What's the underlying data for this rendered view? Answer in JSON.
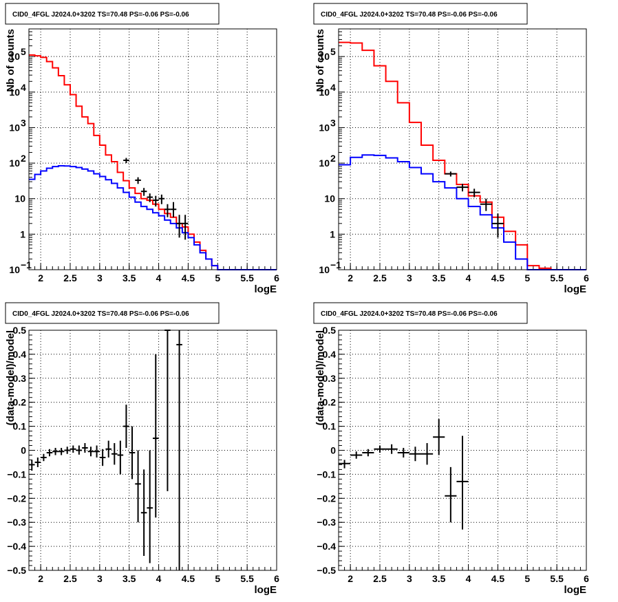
{
  "chart_data": [
    {
      "type": "histogram",
      "title": "CID0_4FGL J2024.0+3202 TS=70.48 PS=-0.06 PS=-0.06",
      "xlabel": "logE",
      "ylabel": "Nb of counts",
      "xlim": [
        1.8,
        6.0
      ],
      "ylim": [
        0.1,
        600000
      ],
      "yscale": "log",
      "grid": true,
      "xticks": [
        "2",
        "2.5",
        "3",
        "3.5",
        "4",
        "4.5",
        "5",
        "5.5",
        "6"
      ],
      "yticks": [
        {
          "v": 0.1,
          "base": "10",
          "exp": "−1"
        },
        {
          "v": 1,
          "base": "1",
          "exp": ""
        },
        {
          "v": 10,
          "base": "10",
          "exp": ""
        },
        {
          "v": 100,
          "base": "10",
          "exp": "2"
        },
        {
          "v": 1000,
          "base": "10",
          "exp": "3"
        },
        {
          "v": 10000,
          "base": "10",
          "exp": "4"
        },
        {
          "v": 100000,
          "base": "10",
          "exp": "5"
        }
      ],
      "series": [
        {
          "color": "#ff0000",
          "bin_width": 0.1,
          "x": [
            1.8,
            1.9,
            2.0,
            2.1,
            2.2,
            2.3,
            2.4,
            2.5,
            2.6,
            2.7,
            2.8,
            2.9,
            3.0,
            3.1,
            3.2,
            3.3,
            3.4,
            3.5,
            3.6,
            3.7,
            3.8,
            3.9,
            4.0,
            4.1,
            4.2,
            4.3,
            4.4,
            4.5,
            4.6,
            4.7,
            4.8,
            4.9,
            5.0,
            5.1,
            5.2,
            5.3,
            5.4,
            5.5,
            5.6,
            5.7,
            5.8,
            5.9
          ],
          "y": [
            110000,
            105000,
            95000,
            72000,
            48000,
            29000,
            16000,
            8500,
            4000,
            2000,
            1300,
            600,
            320,
            170,
            110,
            55,
            32,
            20,
            14,
            10,
            9,
            7,
            5,
            3.8,
            3.0,
            2.0,
            1.6,
            1.0,
            0.6,
            0.35,
            0.2,
            0.13,
            0.1,
            0.1,
            0.1,
            0.1,
            0.1,
            0.1,
            0.1,
            0.1,
            0.1,
            0.1
          ]
        },
        {
          "color": "#0000ff",
          "bin_width": 0.1,
          "x": [
            1.8,
            1.9,
            2.0,
            2.1,
            2.2,
            2.3,
            2.4,
            2.5,
            2.6,
            2.7,
            2.8,
            2.9,
            3.0,
            3.1,
            3.2,
            3.3,
            3.4,
            3.5,
            3.6,
            3.7,
            3.8,
            3.9,
            4.0,
            4.1,
            4.2,
            4.3,
            4.4,
            4.5,
            4.6,
            4.7,
            4.8,
            4.9,
            5.0,
            5.1,
            5.2,
            5.3,
            5.4,
            5.5,
            5.6,
            5.7,
            5.8,
            5.9
          ],
          "y": [
            35,
            48,
            60,
            72,
            80,
            84,
            83,
            80,
            75,
            68,
            60,
            50,
            42,
            34,
            27,
            20,
            15,
            11,
            8,
            6,
            5,
            4,
            3.3,
            2.5,
            2,
            1.5,
            1.1,
            0.8,
            0.5,
            0.3,
            0.2,
            0.13,
            0.1,
            0.1,
            0.1,
            0.1,
            0.1,
            0.1,
            0.1,
            0.1,
            0.1,
            0.1
          ]
        }
      ],
      "points": [
        {
          "x": 3.45,
          "y": 120,
          "ylo": 100,
          "yhi": 140,
          "xerr": 0.05
        },
        {
          "x": 3.65,
          "y": 33,
          "ylo": 26,
          "yhi": 40,
          "xerr": 0.05
        },
        {
          "x": 3.75,
          "y": 16,
          "ylo": 12,
          "yhi": 20,
          "xerr": 0.05
        },
        {
          "x": 3.85,
          "y": 11,
          "ylo": 8,
          "yhi": 14,
          "xerr": 0.05
        },
        {
          "x": 3.95,
          "y": 9,
          "ylo": 6,
          "yhi": 12,
          "xerr": 0.05
        },
        {
          "x": 4.05,
          "y": 10,
          "ylo": 7,
          "yhi": 13,
          "xerr": 0.05
        },
        {
          "x": 4.15,
          "y": 5,
          "ylo": 3,
          "yhi": 7,
          "xerr": 0.05
        },
        {
          "x": 4.25,
          "y": 5,
          "ylo": 3,
          "yhi": 8,
          "xerr": 0.05
        },
        {
          "x": 4.35,
          "y": 2,
          "ylo": 0.8,
          "yhi": 3.5,
          "xerr": 0.05
        },
        {
          "x": 4.45,
          "y": 2,
          "ylo": 0.7,
          "yhi": 3.5,
          "xerr": 0.05
        }
      ]
    },
    {
      "type": "histogram",
      "title": "CID0_4FGL J2024.0+3202 TS=70.48 PS=-0.06 PS=-0.06",
      "xlabel": "logE",
      "ylabel": "Nb of counts",
      "xlim": [
        1.8,
        6.0
      ],
      "ylim": [
        0.1,
        600000
      ],
      "yscale": "log",
      "grid": true,
      "xticks": [
        "2",
        "2.5",
        "3",
        "3.5",
        "4",
        "4.5",
        "5",
        "5.5",
        "6"
      ],
      "yticks": [
        {
          "v": 0.1,
          "base": "10",
          "exp": "−1"
        },
        {
          "v": 1,
          "base": "1",
          "exp": ""
        },
        {
          "v": 10,
          "base": "10",
          "exp": ""
        },
        {
          "v": 100,
          "base": "10",
          "exp": "2"
        },
        {
          "v": 1000,
          "base": "10",
          "exp": "3"
        },
        {
          "v": 10000,
          "base": "10",
          "exp": "4"
        },
        {
          "v": 100000,
          "base": "10",
          "exp": "5"
        }
      ],
      "series": [
        {
          "color": "#ff0000",
          "bin_width": 0.2,
          "x": [
            1.8,
            2.0,
            2.2,
            2.4,
            2.6,
            2.8,
            3.0,
            3.2,
            3.4,
            3.6,
            3.8,
            4.0,
            4.2,
            4.4,
            4.6,
            4.8,
            5.0,
            5.2,
            5.4,
            5.6,
            5.8
          ],
          "y": [
            250000,
            240000,
            150000,
            55000,
            20000,
            5000,
            1400,
            320,
            120,
            50,
            25,
            12,
            8,
            3,
            1.2,
            0.5,
            0.13,
            0.11,
            0.1,
            0.1,
            0.1
          ]
        },
        {
          "color": "#0000ff",
          "bin_width": 0.2,
          "x": [
            1.8,
            2.0,
            2.2,
            2.4,
            2.6,
            2.8,
            3.0,
            3.2,
            3.4,
            3.6,
            3.8,
            4.0,
            4.2,
            4.4,
            4.6,
            4.8,
            5.0,
            5.2,
            5.4,
            5.6,
            5.8
          ],
          "y": [
            90,
            145,
            170,
            165,
            140,
            110,
            75,
            50,
            30,
            20,
            10,
            6,
            3.5,
            1.5,
            0.6,
            0.2,
            0.1,
            0.1,
            0.1,
            0.1,
            0.1
          ]
        }
      ],
      "points": [
        {
          "x": 3.7,
          "y": 50,
          "ylo": 42,
          "yhi": 58,
          "xerr": 0.1
        },
        {
          "x": 3.9,
          "y": 21,
          "ylo": 16,
          "yhi": 26,
          "xerr": 0.1
        },
        {
          "x": 4.1,
          "y": 15,
          "ylo": 11,
          "yhi": 19,
          "xerr": 0.1
        },
        {
          "x": 4.3,
          "y": 7,
          "ylo": 4.5,
          "yhi": 10,
          "xerr": 0.1
        },
        {
          "x": 4.5,
          "y": 2,
          "ylo": 0.8,
          "yhi": 3.8,
          "xerr": 0.1
        }
      ]
    },
    {
      "type": "scatter",
      "title": "CID0_4FGL J2024.0+3202 TS=70.48 PS=-0.06 PS=-0.06",
      "xlabel": "logE",
      "ylabel": "(data-model)/model",
      "xlim": [
        1.8,
        6.0
      ],
      "ylim": [
        -0.5,
        0.5
      ],
      "yscale": "linear",
      "grid": true,
      "xticks": [
        "2",
        "2.5",
        "3",
        "3.5",
        "4",
        "4.5",
        "5",
        "5.5",
        "6"
      ],
      "yticks": [
        "−0.5",
        "−0.4",
        "−0.3",
        "−0.2",
        "−0.1",
        "0",
        "0.1",
        "0.2",
        "0.3",
        "0.4",
        "0.5"
      ],
      "points": [
        {
          "x": 1.85,
          "y": -0.06,
          "ylo": -0.085,
          "yhi": -0.04,
          "xerr": 0.05
        },
        {
          "x": 1.95,
          "y": -0.05,
          "ylo": -0.07,
          "yhi": -0.03,
          "xerr": 0.05
        },
        {
          "x": 2.05,
          "y": -0.03,
          "ylo": -0.045,
          "yhi": -0.015,
          "xerr": 0.05
        },
        {
          "x": 2.15,
          "y": -0.01,
          "ylo": -0.025,
          "yhi": 0.005,
          "xerr": 0.05
        },
        {
          "x": 2.25,
          "y": -0.005,
          "ylo": -0.02,
          "yhi": 0.01,
          "xerr": 0.05
        },
        {
          "x": 2.35,
          "y": -0.005,
          "ylo": -0.02,
          "yhi": 0.01,
          "xerr": 0.05
        },
        {
          "x": 2.45,
          "y": 0.0,
          "ylo": -0.015,
          "yhi": 0.015,
          "xerr": 0.05
        },
        {
          "x": 2.55,
          "y": 0.005,
          "ylo": -0.01,
          "yhi": 0.02,
          "xerr": 0.05
        },
        {
          "x": 2.65,
          "y": 0.0,
          "ylo": -0.018,
          "yhi": 0.02,
          "xerr": 0.05
        },
        {
          "x": 2.75,
          "y": 0.01,
          "ylo": -0.01,
          "yhi": 0.03,
          "xerr": 0.05
        },
        {
          "x": 2.85,
          "y": -0.005,
          "ylo": -0.025,
          "yhi": 0.015,
          "xerr": 0.05
        },
        {
          "x": 2.95,
          "y": -0.005,
          "ylo": -0.03,
          "yhi": 0.02,
          "xerr": 0.05
        },
        {
          "x": 3.05,
          "y": -0.03,
          "ylo": -0.065,
          "yhi": 0.005,
          "xerr": 0.05
        },
        {
          "x": 3.15,
          "y": 0.005,
          "ylo": -0.03,
          "yhi": 0.04,
          "xerr": 0.05
        },
        {
          "x": 3.25,
          "y": -0.015,
          "ylo": -0.06,
          "yhi": 0.03,
          "xerr": 0.05
        },
        {
          "x": 3.35,
          "y": -0.02,
          "ylo": -0.1,
          "yhi": 0.04,
          "xerr": 0.05
        },
        {
          "x": 3.45,
          "y": 0.1,
          "ylo": 0.01,
          "yhi": 0.19,
          "xerr": 0.05
        },
        {
          "x": 3.55,
          "y": -0.01,
          "ylo": -0.12,
          "yhi": 0.1,
          "xerr": 0.05
        },
        {
          "x": 3.65,
          "y": -0.14,
          "ylo": -0.3,
          "yhi": 0.0,
          "xerr": 0.05
        },
        {
          "x": 3.75,
          "y": -0.26,
          "ylo": -0.44,
          "yhi": -0.08,
          "xerr": 0.05
        },
        {
          "x": 3.85,
          "y": -0.24,
          "ylo": -0.47,
          "yhi": 0.0,
          "xerr": 0.05
        },
        {
          "x": 3.95,
          "y": 0.05,
          "ylo": -0.28,
          "yhi": 0.4,
          "xerr": 0.05
        },
        {
          "x": 4.15,
          "y": 0.5,
          "ylo": -0.17,
          "yhi": 0.5,
          "xerr": 0.05
        },
        {
          "x": 4.35,
          "y": 0.44,
          "ylo": -0.5,
          "yhi": 0.5,
          "xerr": 0.05
        }
      ]
    },
    {
      "type": "scatter",
      "title": "CID0_4FGL J2024.0+3202 TS=70.48 PS=-0.06 PS=-0.06",
      "xlabel": "logE",
      "ylabel": "(data-model)/model",
      "xlim": [
        1.8,
        6.0
      ],
      "ylim": [
        -0.5,
        0.5
      ],
      "yscale": "linear",
      "grid": true,
      "xticks": [
        "2",
        "2.5",
        "3",
        "3.5",
        "4",
        "4.5",
        "5",
        "5.5",
        "6"
      ],
      "yticks": [
        "−0.5",
        "−0.4",
        "−0.3",
        "−0.2",
        "−0.1",
        "0",
        "0.1",
        "0.2",
        "0.3",
        "0.4",
        "0.5"
      ],
      "points": [
        {
          "x": 1.9,
          "y": -0.055,
          "ylo": -0.075,
          "yhi": -0.04,
          "xerr": 0.1
        },
        {
          "x": 2.1,
          "y": -0.02,
          "ylo": -0.035,
          "yhi": -0.005,
          "xerr": 0.1
        },
        {
          "x": 2.3,
          "y": -0.01,
          "ylo": -0.025,
          "yhi": 0.005,
          "xerr": 0.1
        },
        {
          "x": 2.5,
          "y": 0.005,
          "ylo": -0.01,
          "yhi": 0.02,
          "xerr": 0.1
        },
        {
          "x": 2.7,
          "y": 0.005,
          "ylo": -0.015,
          "yhi": 0.025,
          "xerr": 0.1
        },
        {
          "x": 2.9,
          "y": -0.01,
          "ylo": -0.03,
          "yhi": 0.01,
          "xerr": 0.1
        },
        {
          "x": 3.1,
          "y": -0.015,
          "ylo": -0.045,
          "yhi": 0.015,
          "xerr": 0.1
        },
        {
          "x": 3.3,
          "y": -0.015,
          "ylo": -0.06,
          "yhi": 0.03,
          "xerr": 0.1
        },
        {
          "x": 3.5,
          "y": 0.055,
          "ylo": -0.02,
          "yhi": 0.13,
          "xerr": 0.1
        },
        {
          "x": 3.7,
          "y": -0.19,
          "ylo": -0.3,
          "yhi": -0.07,
          "xerr": 0.1
        },
        {
          "x": 3.9,
          "y": -0.13,
          "ylo": -0.33,
          "yhi": 0.06,
          "xerr": 0.1
        }
      ]
    }
  ]
}
